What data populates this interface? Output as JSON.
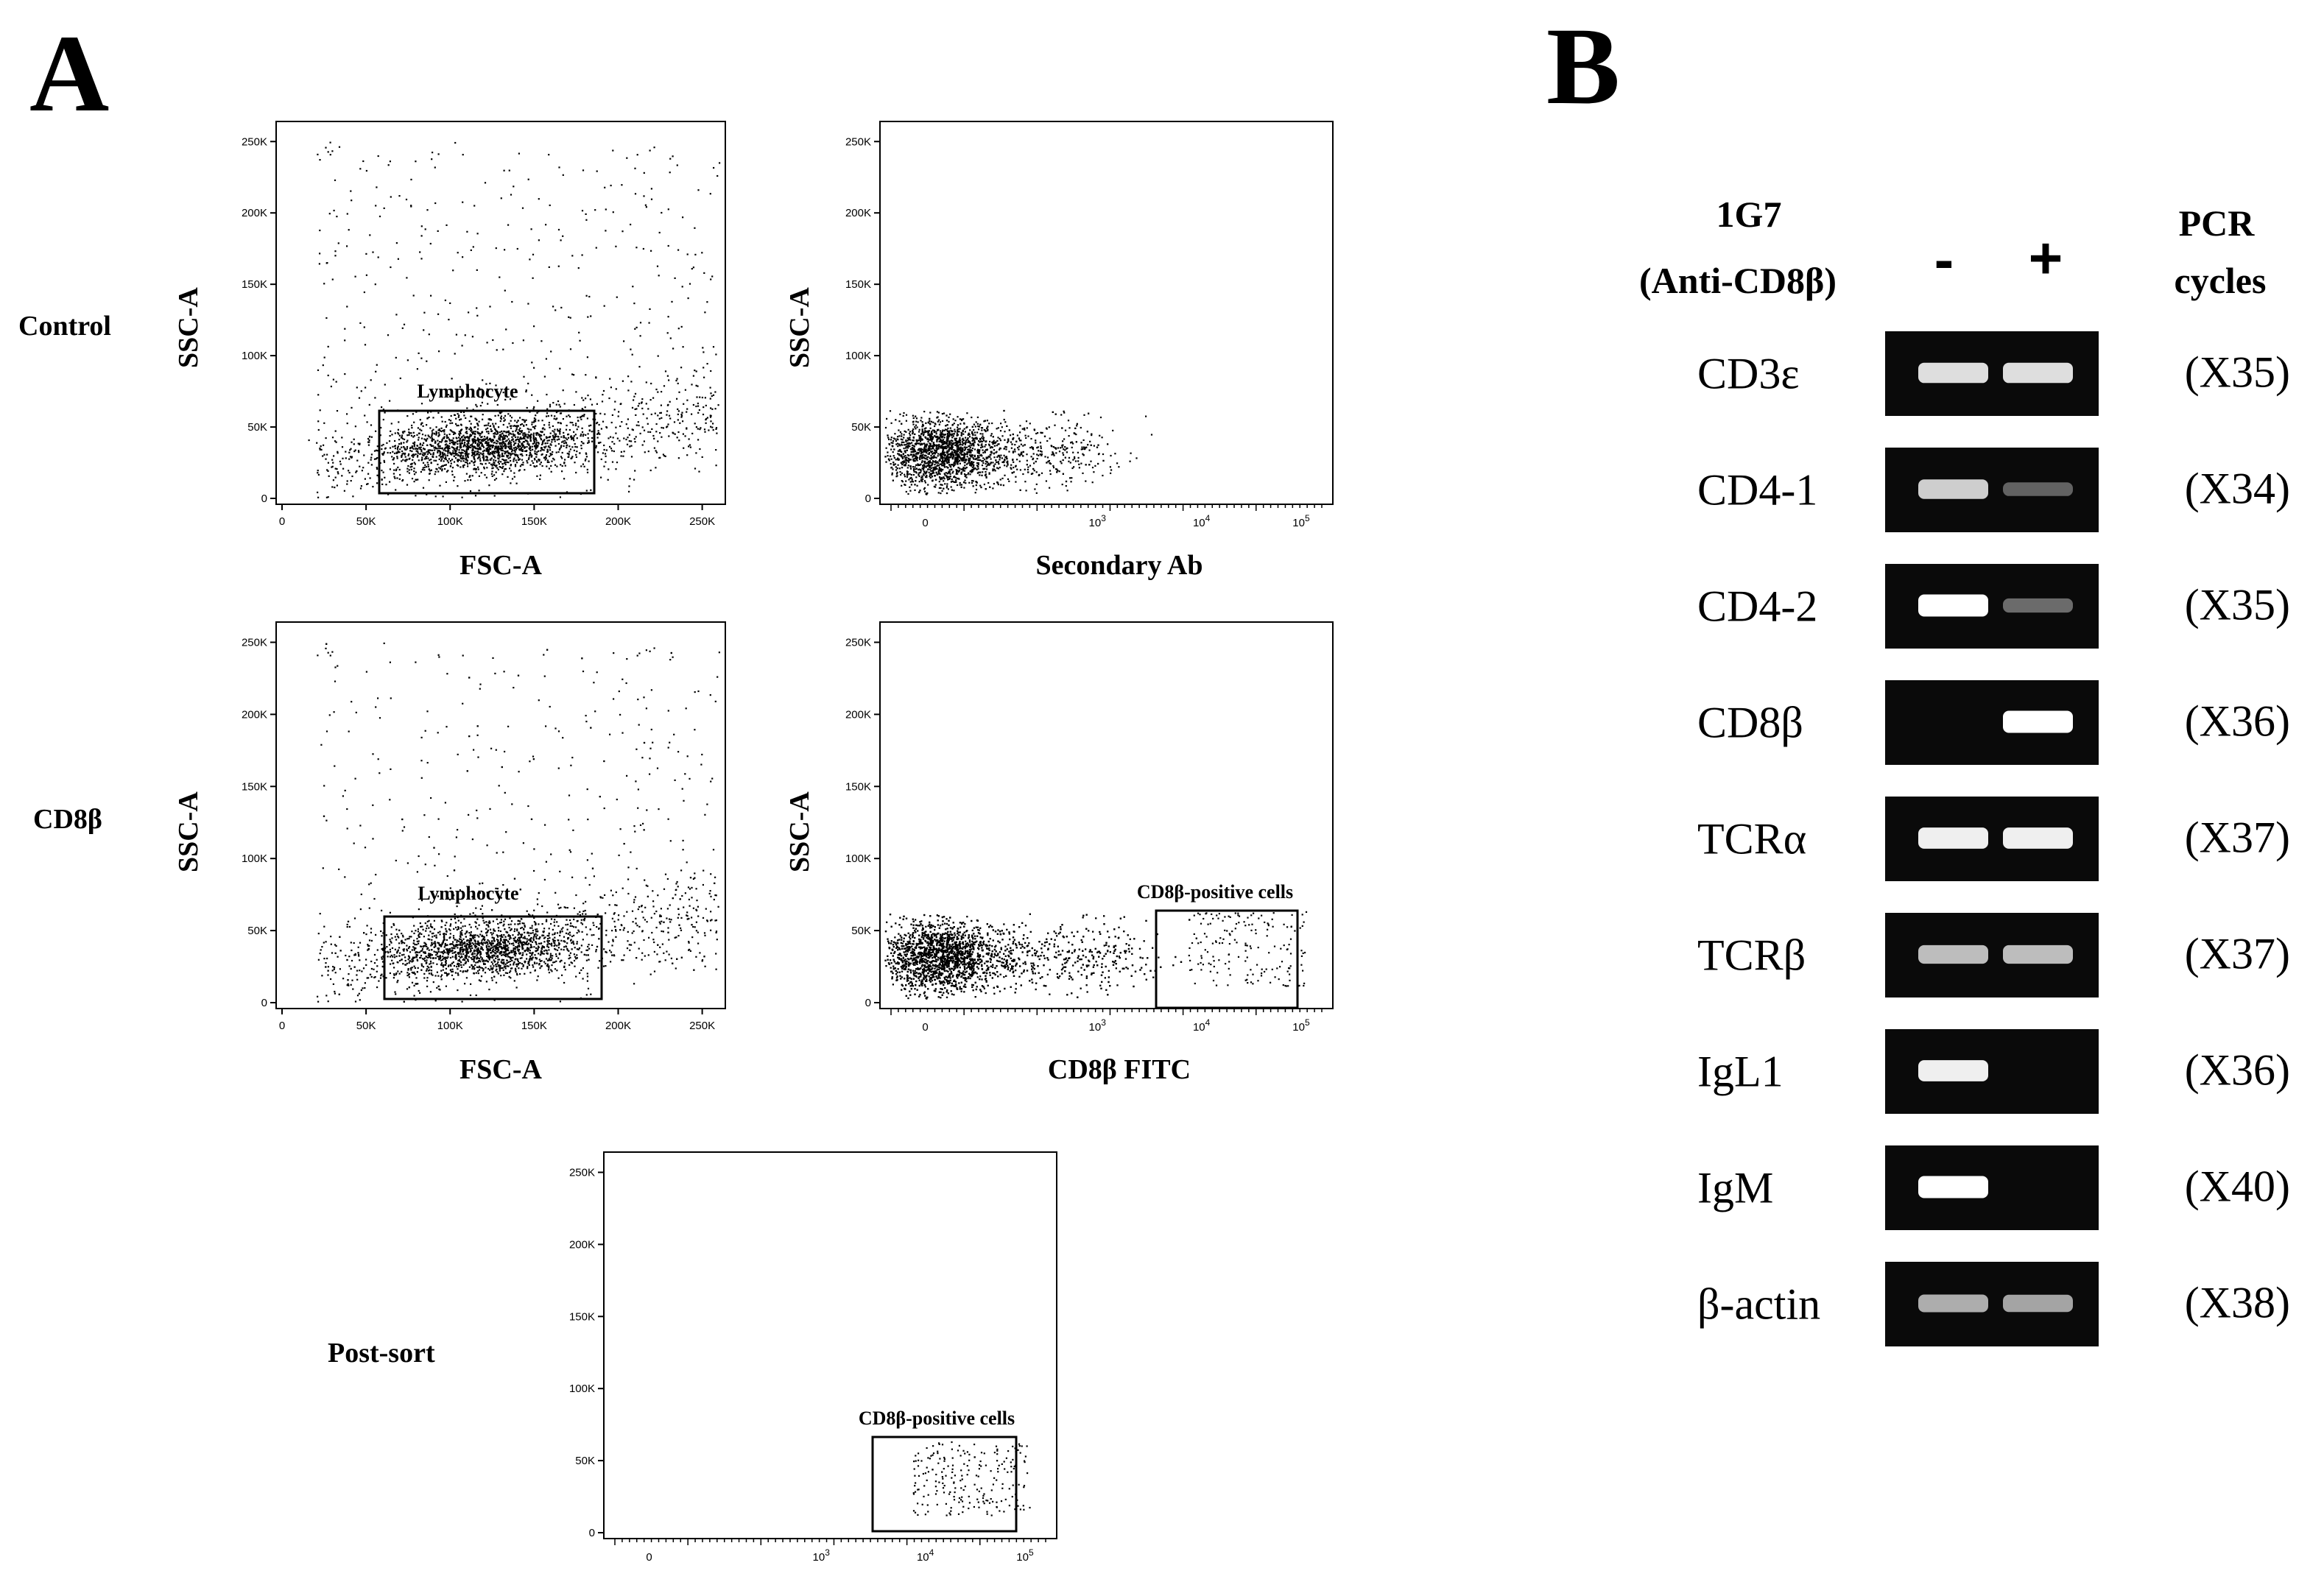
{
  "panels": {
    "a_label": "A",
    "b_label": "B"
  },
  "flow": {
    "row_labels": [
      "Control",
      "CD8β",
      "Post-sort"
    ],
    "y_axis_label": "SSC-A",
    "y_ticks": [
      "0",
      "50K",
      "100K",
      "150K",
      "200K",
      "250K"
    ],
    "x_ticks_linear": [
      "0",
      "50K",
      "100K",
      "150K",
      "200K",
      "250K"
    ],
    "x_ticks_log": [
      "0",
      "10^3",
      "10^4",
      "10^5"
    ],
    "plots": [
      {
        "id": "control-fsc",
        "xlabel": "FSC-A",
        "gate_label": "Lymphocyte"
      },
      {
        "id": "control-secondary",
        "xlabel": "Secondary Ab",
        "gate_label": ""
      },
      {
        "id": "cd8b-fsc",
        "xlabel": "FSC-A",
        "gate_label": "Lymphocyte"
      },
      {
        "id": "cd8b-fitc",
        "xlabel": "CD8β FITC",
        "gate_label": "CD8β-positive cells"
      },
      {
        "id": "post-sort",
        "xlabel": "",
        "gate_label": "CD8β-positive cells"
      }
    ]
  },
  "gel": {
    "header_left_line1": "1G7",
    "header_left_line2": "(Anti-CD8β)",
    "header_minus": "-",
    "header_plus": "+",
    "header_right_line1": "PCR",
    "header_right_line2": "cycles",
    "rows": [
      {
        "gene": "CD3ε",
        "cycles": "(X35)",
        "minus": 0.8,
        "plus": 0.8
      },
      {
        "gene": "CD4-1",
        "cycles": "(X34)",
        "minus": 0.7,
        "plus": 0.05
      },
      {
        "gene": "CD4-2",
        "cycles": "(X35)",
        "minus": 1.0,
        "plus": 0.1
      },
      {
        "gene": "CD8β",
        "cycles": "(X36)",
        "minus": 0.0,
        "plus": 1.0
      },
      {
        "gene": "TCRα",
        "cycles": "(X37)",
        "minus": 0.9,
        "plus": 0.9
      },
      {
        "gene": "TCRβ",
        "cycles": "(X37)",
        "minus": 0.6,
        "plus": 0.6
      },
      {
        "gene": "IgL1",
        "cycles": "(X36)",
        "minus": 0.9,
        "plus": 0.0
      },
      {
        "gene": "IgM",
        "cycles": "(X40)",
        "minus": 1.0,
        "plus": 0.0
      },
      {
        "gene": "β-actin",
        "cycles": "(X38)",
        "minus": 0.5,
        "plus": 0.45
      }
    ]
  }
}
